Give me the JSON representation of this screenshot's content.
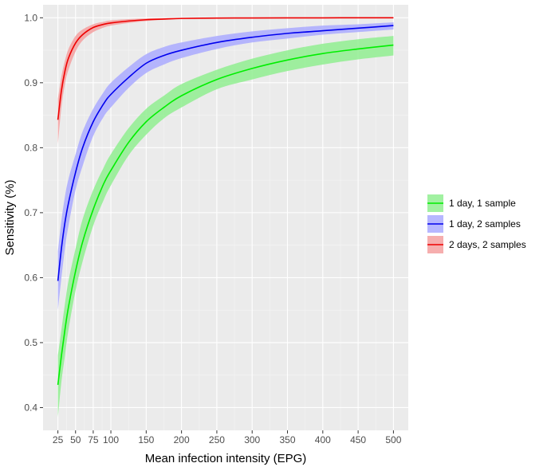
{
  "chart_data": {
    "type": "line",
    "xlabel": "Mean infection intensity (EPG)",
    "ylabel": "Sensitivity (%)",
    "xlim": [
      4,
      521
    ],
    "ylim": [
      0.365,
      1.02
    ],
    "x_ticks": [
      25,
      50,
      75,
      100,
      150,
      200,
      250,
      300,
      350,
      400,
      450,
      500
    ],
    "x_tick_labels": [
      "25",
      "50",
      "75",
      "100",
      "150",
      "200",
      "250",
      "300",
      "350",
      "400",
      "450",
      "500"
    ],
    "y_ticks": [
      0.4,
      0.5,
      0.6,
      0.7,
      0.8,
      0.9,
      1.0
    ],
    "y_tick_labels": [
      "0.4",
      "0.5",
      "0.6",
      "0.7",
      "0.8",
      "0.9",
      "1.0"
    ],
    "grid": true,
    "legend_position": "right",
    "x": [
      25,
      30,
      35,
      40,
      50,
      60,
      75,
      90,
      100,
      125,
      150,
      175,
      200,
      250,
      300,
      350,
      400,
      450,
      500
    ],
    "series": [
      {
        "name": "1 day, 1 sample",
        "color": "#00ee00",
        "band_color": "#90ee90",
        "values": [
          0.435,
          0.48,
          0.52,
          0.555,
          0.61,
          0.655,
          0.705,
          0.745,
          0.765,
          0.808,
          0.84,
          0.862,
          0.88,
          0.905,
          0.922,
          0.935,
          0.945,
          0.952,
          0.958
        ],
        "lower": [
          0.385,
          0.44,
          0.48,
          0.52,
          0.58,
          0.625,
          0.68,
          0.72,
          0.742,
          0.788,
          0.82,
          0.845,
          0.862,
          0.89,
          0.905,
          0.918,
          0.928,
          0.936,
          0.942
        ],
        "upper": [
          0.48,
          0.52,
          0.56,
          0.595,
          0.645,
          0.69,
          0.735,
          0.77,
          0.79,
          0.83,
          0.86,
          0.88,
          0.898,
          0.92,
          0.937,
          0.95,
          0.96,
          0.967,
          0.972
        ]
      },
      {
        "name": "1 day, 2 samples",
        "color": "#0000ee",
        "band_color": "#aaaaff",
        "values": [
          0.595,
          0.645,
          0.685,
          0.715,
          0.762,
          0.8,
          0.84,
          0.868,
          0.882,
          0.908,
          0.93,
          0.942,
          0.95,
          0.962,
          0.97,
          0.976,
          0.98,
          0.984,
          0.988
        ],
        "lower": [
          0.55,
          0.6,
          0.645,
          0.68,
          0.735,
          0.772,
          0.818,
          0.848,
          0.862,
          0.892,
          0.915,
          0.928,
          0.938,
          0.952,
          0.962,
          0.968,
          0.974,
          0.978,
          0.982
        ],
        "upper": [
          0.64,
          0.688,
          0.725,
          0.752,
          0.79,
          0.825,
          0.86,
          0.886,
          0.9,
          0.924,
          0.944,
          0.955,
          0.962,
          0.972,
          0.979,
          0.984,
          0.988,
          0.99,
          0.993
        ]
      },
      {
        "name": "2 days, 2 samples",
        "color": "#ee0000",
        "band_color": "#f4a0a0",
        "values": [
          0.843,
          0.888,
          0.918,
          0.938,
          0.961,
          0.974,
          0.985,
          0.99,
          0.992,
          0.995,
          0.997,
          0.998,
          0.999,
          0.9995,
          0.9997,
          0.9998,
          0.9999,
          1.0,
          1.0
        ],
        "lower": [
          0.805,
          0.862,
          0.898,
          0.92,
          0.948,
          0.965,
          0.978,
          0.985,
          0.988,
          0.992,
          0.995,
          0.997,
          0.998,
          0.999,
          0.9995,
          0.9997,
          0.9998,
          0.9999,
          1.0
        ],
        "upper": [
          0.875,
          0.91,
          0.934,
          0.952,
          0.972,
          0.982,
          0.99,
          0.994,
          0.996,
          0.998,
          0.999,
          0.9995,
          0.9998,
          1.0,
          1.0,
          1.0,
          1.0,
          1.0,
          1.0
        ]
      }
    ]
  }
}
